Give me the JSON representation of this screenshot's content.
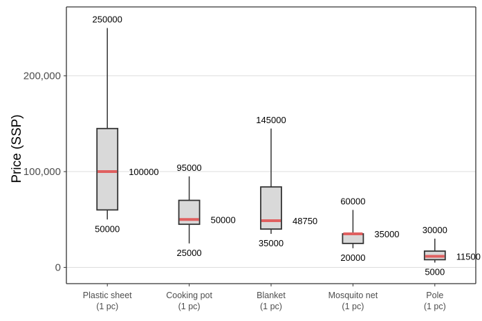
{
  "chart_data": {
    "type": "box",
    "ylabel": "Price (SSP)",
    "xlabel": "",
    "title": "",
    "ylim": [
      -17000,
      272000
    ],
    "yticks": [
      0,
      100000,
      200000
    ],
    "ytick_labels": [
      "0",
      "100,000",
      "200,000"
    ],
    "grid": "horizontal",
    "colors": {
      "box_fill": "#d9d9d9",
      "box_stroke": "#333333",
      "median": "#e06060",
      "grid": "#dddddd",
      "axis": "#333333"
    },
    "categories": [
      {
        "line1": "Plastic sheet",
        "line2": "(1 pc)"
      },
      {
        "line1": "Cooking pot",
        "line2": "(1 pc)"
      },
      {
        "line1": "Blanket",
        "line2": "(1 pc)"
      },
      {
        "line1": "Mosquito net",
        "line2": "(1 pc)"
      },
      {
        "line1": "Pole",
        "line2": "(1 pc)"
      }
    ],
    "boxes": [
      {
        "min": 50000,
        "q1": 60000,
        "median": 100000,
        "q3": 145000,
        "max": 250000,
        "min_label": "50000",
        "median_label": "100000",
        "max_label": "250000"
      },
      {
        "min": 25000,
        "q1": 45000,
        "median": 50000,
        "q3": 70000,
        "max": 95000,
        "min_label": "25000",
        "median_label": "50000",
        "max_label": "95000"
      },
      {
        "min": 35000,
        "q1": 40000,
        "median": 48750,
        "q3": 84000,
        "max": 145000,
        "min_label": "35000",
        "median_label": "48750",
        "max_label": "145000"
      },
      {
        "min": 20000,
        "q1": 25000,
        "median": 35000,
        "q3": 35000,
        "max": 60000,
        "min_label": "20000",
        "median_label": "35000",
        "max_label": "60000"
      },
      {
        "min": 5000,
        "q1": 8000,
        "median": 11500,
        "q3": 17000,
        "max": 30000,
        "min_label": "5000",
        "median_label": "11500",
        "max_label": "30000"
      }
    ]
  }
}
